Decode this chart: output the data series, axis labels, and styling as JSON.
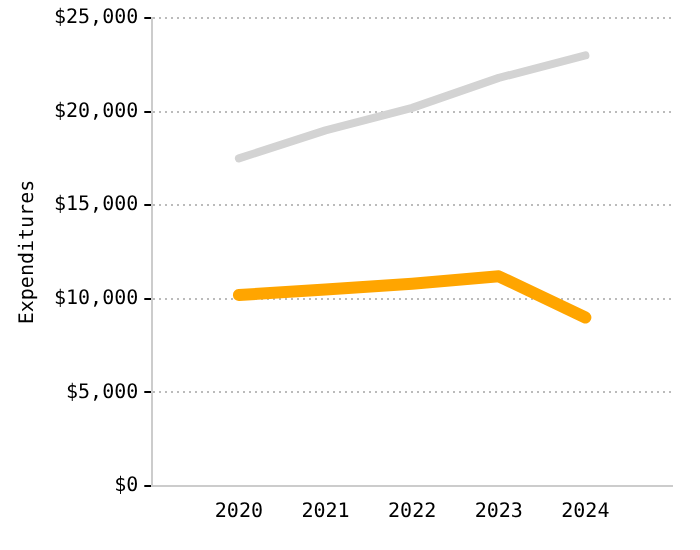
{
  "chart_data": {
    "type": "line",
    "ylabel": "Expenditures",
    "x": [
      2020,
      2021,
      2022,
      2023,
      2024
    ],
    "series": [
      {
        "color": "#d3d3d3",
        "values": [
          17500,
          19000,
          20200,
          21800,
          23000
        ]
      },
      {
        "color": "#ffa500",
        "values": [
          10200,
          10500,
          10800,
          11200,
          9000
        ]
      }
    ],
    "xlim": [
      2019,
      2025
    ],
    "xticks": [
      2020,
      2021,
      2022,
      2023,
      2024
    ],
    "ylim": [
      0,
      25000
    ],
    "yticks": [
      {
        "value": 0,
        "label": "$0"
      },
      {
        "value": 5000,
        "label": "$5,000"
      },
      {
        "value": 10000,
        "label": "$10,000"
      },
      {
        "value": 15000,
        "label": "$15,000"
      },
      {
        "value": 20000,
        "label": "$20,000"
      },
      {
        "value": 25000,
        "label": "$25,000"
      }
    ],
    "grid": "y",
    "legend": false
  }
}
